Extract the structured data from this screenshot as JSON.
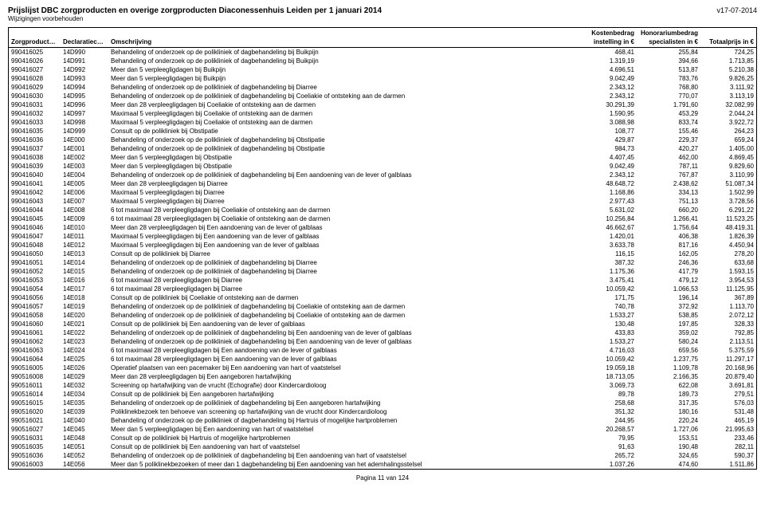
{
  "header": {
    "title": "Prijslijst DBC zorgproducten en overige zorgproducten Diaconessenhuis Leiden per 1 januari 2014",
    "version": "v17-07-2014",
    "subtitle": "Wijzigingen voorbehouden"
  },
  "columns": {
    "c1": "Zorgproductcode",
    "c2": "Declaratiecode",
    "c3": "Omschrijving",
    "c4_top": "Kostenbedrag",
    "c4": "instelling in €",
    "c5_top": "Honorariumbedrag",
    "c5": "specialisten in €",
    "c6": "Totaalprijs in €"
  },
  "rows": [
    {
      "zp": "990416025",
      "dc": "14D990",
      "om": "Behandeling of onderzoek op de polikliniek of dagbehandeling bij Buikpijn",
      "kb": "468,41",
      "hb": "255,84",
      "tp": "724,25"
    },
    {
      "zp": "990416026",
      "dc": "14D991",
      "om": "Behandeling of onderzoek op de polikliniek of dagbehandeling bij Buikpijn",
      "kb": "1.319,19",
      "hb": "394,66",
      "tp": "1.713,85"
    },
    {
      "zp": "990416027",
      "dc": "14D992",
      "om": "Meer dan 5 verpleegligdagen bij Buikpijn",
      "kb": "4.696,51",
      "hb": "513,87",
      "tp": "5.210,38"
    },
    {
      "zp": "990416028",
      "dc": "14D993",
      "om": "Meer dan 5 verpleegligdagen bij Buikpijn",
      "kb": "9.042,49",
      "hb": "783,76",
      "tp": "9.826,25"
    },
    {
      "zp": "990416029",
      "dc": "14D994",
      "om": "Behandeling of onderzoek op de polikliniek of dagbehandeling bij Diarree",
      "kb": "2.343,12",
      "hb": "768,80",
      "tp": "3.111,92"
    },
    {
      "zp": "990416030",
      "dc": "14D995",
      "om": "Behandeling of onderzoek op de polikliniek of dagbehandeling bij Coeliakie of ontsteking aan de darmen",
      "kb": "2.343,12",
      "hb": "770,07",
      "tp": "3.113,19"
    },
    {
      "zp": "990416031",
      "dc": "14D996",
      "om": "Meer dan 28 verpleegligdagen bij Coeliakie of ontsteking aan de darmen",
      "kb": "30.291,39",
      "hb": "1.791,60",
      "tp": "32.082,99"
    },
    {
      "zp": "990416032",
      "dc": "14D997",
      "om": "Maximaal 5 verpleegligdagen bij Coeliakie of ontsteking aan de darmen",
      "kb": "1.590,95",
      "hb": "453,29",
      "tp": "2.044,24"
    },
    {
      "zp": "990416033",
      "dc": "14D998",
      "om": "Maximaal 5 verpleegligdagen bij Coeliakie of ontsteking aan de darmen",
      "kb": "3.088,98",
      "hb": "833,74",
      "tp": "3.922,72"
    },
    {
      "zp": "990416035",
      "dc": "14D999",
      "om": "Consult op de polikliniek bij Obstipatie",
      "kb": "108,77",
      "hb": "155,46",
      "tp": "264,23"
    },
    {
      "zp": "990416036",
      "dc": "14E000",
      "om": "Behandeling of onderzoek op de polikliniek of dagbehandeling bij Obstipatie",
      "kb": "429,87",
      "hb": "229,37",
      "tp": "659,24"
    },
    {
      "zp": "990416037",
      "dc": "14E001",
      "om": "Behandeling of onderzoek op de polikliniek of dagbehandeling bij Obstipatie",
      "kb": "984,73",
      "hb": "420,27",
      "tp": "1.405,00"
    },
    {
      "zp": "990416038",
      "dc": "14E002",
      "om": "Meer dan 5 verpleegligdagen bij Obstipatie",
      "kb": "4.407,45",
      "hb": "462,00",
      "tp": "4.869,45"
    },
    {
      "zp": "990416039",
      "dc": "14E003",
      "om": "Meer dan 5 verpleegligdagen bij Obstipatie",
      "kb": "9.042,49",
      "hb": "787,11",
      "tp": "9.829,60"
    },
    {
      "zp": "990416040",
      "dc": "14E004",
      "om": "Behandeling of onderzoek op de polikliniek of dagbehandeling bij Een aandoening van de lever of galblaas",
      "kb": "2.343,12",
      "hb": "767,87",
      "tp": "3.110,99"
    },
    {
      "zp": "990416041",
      "dc": "14E005",
      "om": "Meer dan 28 verpleegligdagen bij Diarree",
      "kb": "48.648,72",
      "hb": "2.438,62",
      "tp": "51.087,34"
    },
    {
      "zp": "990416042",
      "dc": "14E006",
      "om": "Maximaal 5 verpleegligdagen bij Diarree",
      "kb": "1.168,86",
      "hb": "334,13",
      "tp": "1.502,99"
    },
    {
      "zp": "990416043",
      "dc": "14E007",
      "om": "Maximaal 5 verpleegligdagen bij Diarree",
      "kb": "2.977,43",
      "hb": "751,13",
      "tp": "3.728,56"
    },
    {
      "zp": "990416044",
      "dc": "14E008",
      "om": "6 tot maximaal 28 verpleegligdagen bij Coeliakie of ontsteking aan de darmen",
      "kb": "5.631,02",
      "hb": "660,20",
      "tp": "6.291,22"
    },
    {
      "zp": "990416045",
      "dc": "14E009",
      "om": "6 tot maximaal 28 verpleegligdagen bij Coeliakie of ontsteking aan de darmen",
      "kb": "10.256,84",
      "hb": "1.266,41",
      "tp": "11.523,25"
    },
    {
      "zp": "990416046",
      "dc": "14E010",
      "om": "Meer dan 28 verpleegligdagen bij Een aandoening van de lever of galblaas",
      "kb": "46.662,67",
      "hb": "1.756,64",
      "tp": "48.419,31"
    },
    {
      "zp": "990416047",
      "dc": "14E011",
      "om": "Maximaal 5 verpleegligdagen bij Een aandoening van de lever of galblaas",
      "kb": "1.420,01",
      "hb": "406,38",
      "tp": "1.826,39"
    },
    {
      "zp": "990416048",
      "dc": "14E012",
      "om": "Maximaal 5 verpleegligdagen bij Een aandoening van de lever of galblaas",
      "kb": "3.633,78",
      "hb": "817,16",
      "tp": "4.450,94"
    },
    {
      "zp": "990416050",
      "dc": "14E013",
      "om": "Consult op de polikliniek bij Diarree",
      "kb": "116,15",
      "hb": "162,05",
      "tp": "278,20"
    },
    {
      "zp": "990416051",
      "dc": "14E014",
      "om": "Behandeling of onderzoek op de polikliniek of dagbehandeling bij Diarree",
      "kb": "387,32",
      "hb": "246,36",
      "tp": "633,68"
    },
    {
      "zp": "990416052",
      "dc": "14E015",
      "om": "Behandeling of onderzoek op de polikliniek of dagbehandeling bij Diarree",
      "kb": "1.175,36",
      "hb": "417,79",
      "tp": "1.593,15"
    },
    {
      "zp": "990416053",
      "dc": "14E016",
      "om": "6 tot maximaal 28 verpleegligdagen bij Diarree",
      "kb": "3.475,41",
      "hb": "479,12",
      "tp": "3.954,53"
    },
    {
      "zp": "990416054",
      "dc": "14E017",
      "om": "6 tot maximaal 28 verpleegligdagen bij Diarree",
      "kb": "10.059,42",
      "hb": "1.066,53",
      "tp": "11.125,95"
    },
    {
      "zp": "990416056",
      "dc": "14E018",
      "om": "Consult op de polikliniek bij Coeliakie of ontsteking aan de darmen",
      "kb": "171,75",
      "hb": "196,14",
      "tp": "367,89"
    },
    {
      "zp": "990416057",
      "dc": "14E019",
      "om": "Behandeling of onderzoek op de polikliniek of dagbehandeling bij Coeliakie of ontsteking aan de darmen",
      "kb": "740,78",
      "hb": "372,92",
      "tp": "1.113,70"
    },
    {
      "zp": "990416058",
      "dc": "14E020",
      "om": "Behandeling of onderzoek op de polikliniek of dagbehandeling bij Coeliakie of ontsteking aan de darmen",
      "kb": "1.533,27",
      "hb": "538,85",
      "tp": "2.072,12"
    },
    {
      "zp": "990416060",
      "dc": "14E021",
      "om": "Consult op de polikliniek bij Een aandoening van de lever of galblaas",
      "kb": "130,48",
      "hb": "197,85",
      "tp": "328,33"
    },
    {
      "zp": "990416061",
      "dc": "14E022",
      "om": "Behandeling of onderzoek op de polikliniek of dagbehandeling bij Een aandoening van de lever of galblaas",
      "kb": "433,83",
      "hb": "359,02",
      "tp": "792,85"
    },
    {
      "zp": "990416062",
      "dc": "14E023",
      "om": "Behandeling of onderzoek op de polikliniek of dagbehandeling bij Een aandoening van de lever of galblaas",
      "kb": "1.533,27",
      "hb": "580,24",
      "tp": "2.113,51"
    },
    {
      "zp": "990416063",
      "dc": "14E024",
      "om": "6 tot maximaal 28 verpleegligdagen bij Een aandoening van de lever of galblaas",
      "kb": "4.716,03",
      "hb": "659,56",
      "tp": "5.375,59"
    },
    {
      "zp": "990416064",
      "dc": "14E025",
      "om": "6 tot maximaal 28 verpleegligdagen bij Een aandoening van de lever of galblaas",
      "kb": "10.059,42",
      "hb": "1.237,75",
      "tp": "11.297,17"
    },
    {
      "zp": "990516005",
      "dc": "14E026",
      "om": "Operatief plaatsen van een pacemaker bij Een aandoening van hart of vaatstelsel",
      "kb": "19.059,18",
      "hb": "1.109,78",
      "tp": "20.168,96"
    },
    {
      "zp": "990516008",
      "dc": "14E029",
      "om": "Meer dan 28 verpleegligdagen bij Een aangeboren hartafwijking",
      "kb": "18.713,05",
      "hb": "2.166,35",
      "tp": "20.879,40"
    },
    {
      "zp": "990516011",
      "dc": "14E032",
      "om": "Screening op hartafwijking van de vrucht (Echografie) door Kindercardioloog",
      "kb": "3.069,73",
      "hb": "622,08",
      "tp": "3.691,81"
    },
    {
      "zp": "990516014",
      "dc": "14E034",
      "om": "Consult op de polikliniek bij Een aangeboren hartafwijking",
      "kb": "89,78",
      "hb": "189,73",
      "tp": "279,51"
    },
    {
      "zp": "990516015",
      "dc": "14E035",
      "om": "Behandeling of onderzoek op de polikliniek of dagbehandeling bij Een aangeboren hartafwijking",
      "kb": "258,68",
      "hb": "317,35",
      "tp": "576,03"
    },
    {
      "zp": "990516020",
      "dc": "14E039",
      "om": "Poliklinekbezoek ten behoeve van screening op hartafwijking van de vrucht door Kindercardioloog",
      "kb": "351,32",
      "hb": "180,16",
      "tp": "531,48"
    },
    {
      "zp": "990516021",
      "dc": "14E040",
      "om": "Behandeling of onderzoek op de polikliniek of dagbehandeling bij Hartruis of mogelijke hartproblemen",
      "kb": "244,95",
      "hb": "220,24",
      "tp": "465,19"
    },
    {
      "zp": "990516027",
      "dc": "14E045",
      "om": "Meer dan 5 verpleegligdagen bij Een aandoening van hart of vaatstelsel",
      "kb": "20.268,57",
      "hb": "1.727,06",
      "tp": "21.995,63"
    },
    {
      "zp": "990516031",
      "dc": "14E048",
      "om": "Consult op de polikliniek bij Hartruis of mogelijke hartproblemen",
      "kb": "79,95",
      "hb": "153,51",
      "tp": "233,46"
    },
    {
      "zp": "990516035",
      "dc": "14E051",
      "om": "Consult op de polikliniek bij Een aandoening van hart of vaatstelsel",
      "kb": "91,63",
      "hb": "190,48",
      "tp": "282,11"
    },
    {
      "zp": "990516036",
      "dc": "14E052",
      "om": "Behandeling of onderzoek op de polikliniek of dagbehandeling bij Een aandoening van hart of vaatstelsel",
      "kb": "265,72",
      "hb": "324,65",
      "tp": "590,37"
    },
    {
      "zp": "990616003",
      "dc": "14E056",
      "om": "Meer dan 5 poliklinekbezoeken of meer dan 1 dagbehandeling bij Een aandoening van het ademhalingsstelsel",
      "kb": "1.037,26",
      "hb": "474,60",
      "tp": "1.511,86"
    }
  ],
  "footer": {
    "page": "Pagina 11 van 124"
  }
}
